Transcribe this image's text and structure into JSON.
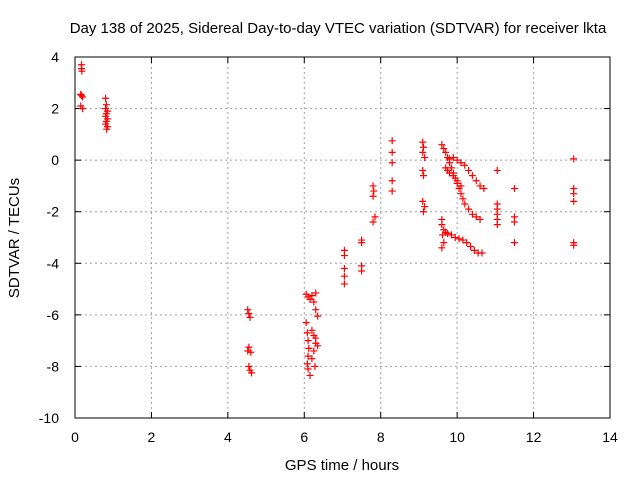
{
  "chart_data": {
    "type": "scatter",
    "title": "Day 138 of 2025, Sidereal Day-to-day VTEC variation (SDTVAR) for receiver lkta",
    "xlabel": "GPS time / hours",
    "ylabel": "SDTVAR / TECUs",
    "xlim": [
      0,
      14
    ],
    "ylim": [
      -10,
      4
    ],
    "x_ticks": [
      0,
      2,
      4,
      6,
      8,
      10,
      12,
      14
    ],
    "y_ticks": [
      -10,
      -8,
      -6,
      -4,
      -2,
      0,
      2,
      4
    ],
    "grid": true,
    "marker": "+",
    "color": "#ff0000",
    "series": [
      {
        "name": "SDTVAR",
        "points": [
          [
            0.17,
            3.7
          ],
          [
            0.17,
            3.55
          ],
          [
            0.18,
            3.45
          ],
          [
            0.15,
            2.55
          ],
          [
            0.17,
            2.5
          ],
          [
            0.2,
            2.45
          ],
          [
            0.15,
            2.1
          ],
          [
            0.2,
            2.0
          ],
          [
            0.8,
            2.4
          ],
          [
            0.82,
            2.15
          ],
          [
            0.8,
            2.0
          ],
          [
            0.85,
            1.9
          ],
          [
            0.82,
            1.8
          ],
          [
            0.8,
            1.7
          ],
          [
            0.85,
            1.6
          ],
          [
            0.82,
            1.5
          ],
          [
            0.8,
            1.4
          ],
          [
            0.85,
            1.3
          ],
          [
            0.83,
            1.2
          ],
          [
            4.52,
            -5.8
          ],
          [
            4.55,
            -5.95
          ],
          [
            4.58,
            -6.1
          ],
          [
            4.55,
            -7.25
          ],
          [
            4.52,
            -7.4
          ],
          [
            4.6,
            -7.45
          ],
          [
            4.55,
            -8.0
          ],
          [
            4.58,
            -8.15
          ],
          [
            4.62,
            -8.25
          ],
          [
            6.05,
            -5.2
          ],
          [
            6.1,
            -5.3
          ],
          [
            6.15,
            -5.4
          ],
          [
            6.2,
            -5.25
          ],
          [
            6.3,
            -5.15
          ],
          [
            6.25,
            -5.5
          ],
          [
            6.3,
            -5.8
          ],
          [
            6.35,
            -6.05
          ],
          [
            6.05,
            -6.3
          ],
          [
            6.08,
            -6.7
          ],
          [
            6.1,
            -7.0
          ],
          [
            6.12,
            -7.3
          ],
          [
            6.1,
            -7.6
          ],
          [
            6.08,
            -7.9
          ],
          [
            6.1,
            -8.1
          ],
          [
            6.15,
            -8.35
          ],
          [
            6.2,
            -6.6
          ],
          [
            6.25,
            -6.8
          ],
          [
            6.3,
            -7.1
          ],
          [
            6.25,
            -7.4
          ],
          [
            6.2,
            -7.7
          ],
          [
            6.28,
            -8.0
          ],
          [
            6.35,
            -7.2
          ],
          [
            6.3,
            -6.9
          ],
          [
            7.05,
            -3.5
          ],
          [
            7.05,
            -3.7
          ],
          [
            7.05,
            -4.2
          ],
          [
            7.05,
            -4.5
          ],
          [
            7.05,
            -4.8
          ],
          [
            7.5,
            -3.1
          ],
          [
            7.5,
            -3.2
          ],
          [
            7.5,
            -4.1
          ],
          [
            7.5,
            -4.3
          ],
          [
            7.8,
            -1.0
          ],
          [
            7.82,
            -1.2
          ],
          [
            7.8,
            -1.4
          ],
          [
            7.85,
            -2.2
          ],
          [
            7.8,
            -2.4
          ],
          [
            8.3,
            0.75
          ],
          [
            8.3,
            0.3
          ],
          [
            8.3,
            -0.1
          ],
          [
            8.3,
            -0.8
          ],
          [
            8.3,
            -1.2
          ],
          [
            9.1,
            0.7
          ],
          [
            9.12,
            0.5
          ],
          [
            9.1,
            0.3
          ],
          [
            9.15,
            0.1
          ],
          [
            9.1,
            -0.4
          ],
          [
            9.12,
            -0.6
          ],
          [
            9.1,
            -1.6
          ],
          [
            9.15,
            -1.8
          ],
          [
            9.12,
            -2.0
          ],
          [
            9.6,
            0.6
          ],
          [
            9.65,
            0.45
          ],
          [
            9.7,
            0.3
          ],
          [
            9.75,
            0.1
          ],
          [
            9.8,
            -0.1
          ],
          [
            9.85,
            -0.3
          ],
          [
            9.9,
            -0.5
          ],
          [
            9.95,
            -0.7
          ],
          [
            10.0,
            -0.9
          ],
          [
            10.05,
            -1.1
          ],
          [
            10.1,
            -1.3
          ],
          [
            10.15,
            -1.5
          ],
          [
            10.2,
            -1.7
          ],
          [
            10.3,
            -1.9
          ],
          [
            10.4,
            -2.1
          ],
          [
            10.5,
            -2.2
          ],
          [
            10.6,
            -2.3
          ],
          [
            9.8,
            0.05
          ],
          [
            9.9,
            0.1
          ],
          [
            10.0,
            0.0
          ],
          [
            10.1,
            -0.1
          ],
          [
            10.2,
            -0.2
          ],
          [
            10.3,
            -0.4
          ],
          [
            10.4,
            -0.6
          ],
          [
            10.5,
            -0.8
          ],
          [
            10.6,
            -1.0
          ],
          [
            10.7,
            -1.1
          ],
          [
            9.7,
            -0.3
          ],
          [
            9.75,
            -0.4
          ],
          [
            9.8,
            -0.5
          ],
          [
            9.9,
            -0.6
          ],
          [
            10.0,
            -0.8
          ],
          [
            10.1,
            -1.0
          ],
          [
            9.6,
            -2.5
          ],
          [
            9.65,
            -2.7
          ],
          [
            9.7,
            -2.8
          ],
          [
            9.75,
            -2.85
          ],
          [
            9.85,
            -2.9
          ],
          [
            9.95,
            -3.0
          ],
          [
            10.05,
            -3.05
          ],
          [
            10.15,
            -3.1
          ],
          [
            10.25,
            -3.2
          ],
          [
            10.35,
            -3.35
          ],
          [
            10.45,
            -3.5
          ],
          [
            10.55,
            -3.6
          ],
          [
            10.65,
            -3.6
          ],
          [
            9.6,
            -2.3
          ],
          [
            9.62,
            -2.9
          ],
          [
            9.65,
            -3.2
          ],
          [
            9.6,
            -3.4
          ],
          [
            11.05,
            -0.4
          ],
          [
            11.05,
            -1.7
          ],
          [
            11.05,
            -1.9
          ],
          [
            11.05,
            -2.1
          ],
          [
            11.05,
            -2.3
          ],
          [
            11.05,
            -2.5
          ],
          [
            11.5,
            -1.1
          ],
          [
            11.5,
            -2.2
          ],
          [
            11.5,
            -2.4
          ],
          [
            11.5,
            -3.2
          ],
          [
            13.05,
            0.05
          ],
          [
            13.05,
            -1.1
          ],
          [
            13.05,
            -1.3
          ],
          [
            13.05,
            -1.6
          ],
          [
            13.05,
            -3.2
          ],
          [
            13.05,
            -3.3
          ]
        ]
      }
    ]
  }
}
